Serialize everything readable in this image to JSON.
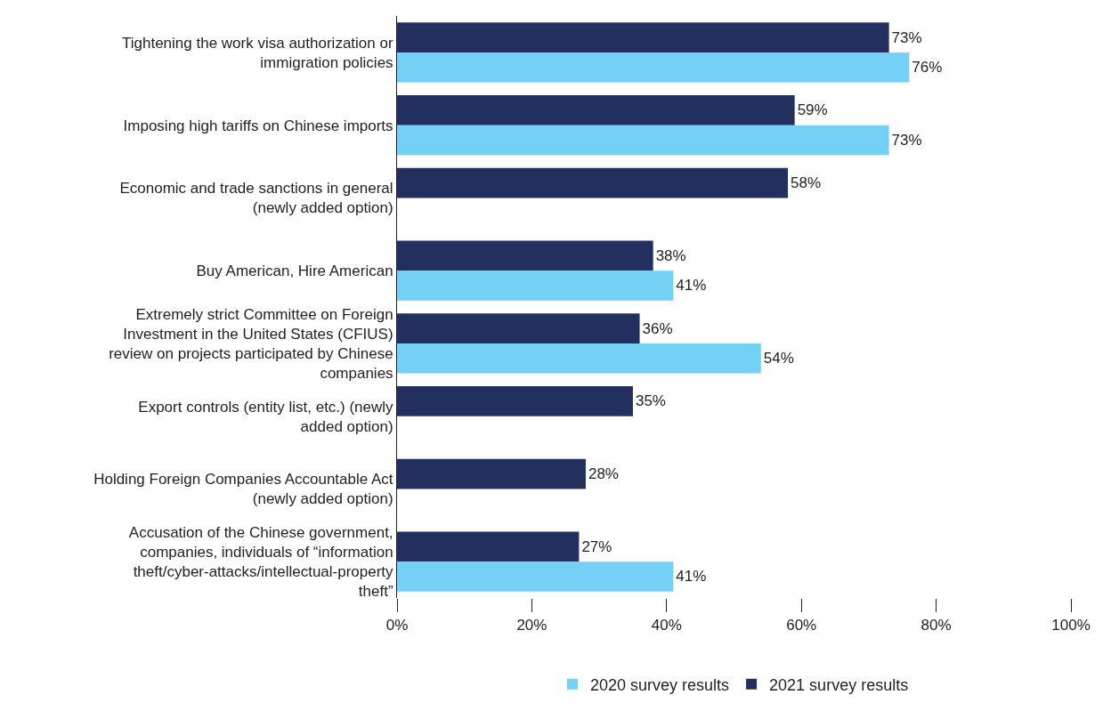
{
  "chart_data": {
    "type": "bar",
    "orientation": "horizontal",
    "categories": [
      "Tightening the work visa authorization or immigration policies",
      "Imposing high tariffs on Chinese imports",
      "Economic and trade sanctions in general (newly added option)",
      "Buy American, Hire American",
      "Extremely strict Committee on Foreign Investment in the United States (CFIUS) review on projects participated by Chinese companies",
      "Export controls (entity list, etc.) (newly added option)",
      "Holding Foreign Companies Accountable Act (newly added option)",
      "Accusation of the Chinese government, companies, individuals of “information theft/cyber-attacks/intellectual-property theft”"
    ],
    "series": [
      {
        "name": "2020 survey results",
        "color": "#75d0f5",
        "values": [
          76,
          73,
          null,
          41,
          54,
          null,
          null,
          41
        ],
        "value_labels": [
          "76%",
          "73%",
          null,
          "41%",
          "54%",
          null,
          null,
          "41%"
        ]
      },
      {
        "name": "2021 survey results",
        "color": "#22305f",
        "values": [
          73,
          59,
          58,
          38,
          36,
          35,
          28,
          27
        ],
        "value_labels": [
          "73%",
          "59%",
          "58%",
          "38%",
          "36%",
          "35%",
          "28%",
          "27%"
        ]
      }
    ],
    "xlim": [
      0,
      100
    ],
    "xticks": [
      {
        "value": 0,
        "label": "0%"
      },
      {
        "value": 20,
        "label": "20%"
      },
      {
        "value": 40,
        "label": "40%"
      },
      {
        "value": 60,
        "label": "60%"
      },
      {
        "value": 80,
        "label": "80%"
      },
      {
        "value": 100,
        "label": "100%"
      }
    ],
    "grid": false,
    "legend": "bottom"
  }
}
